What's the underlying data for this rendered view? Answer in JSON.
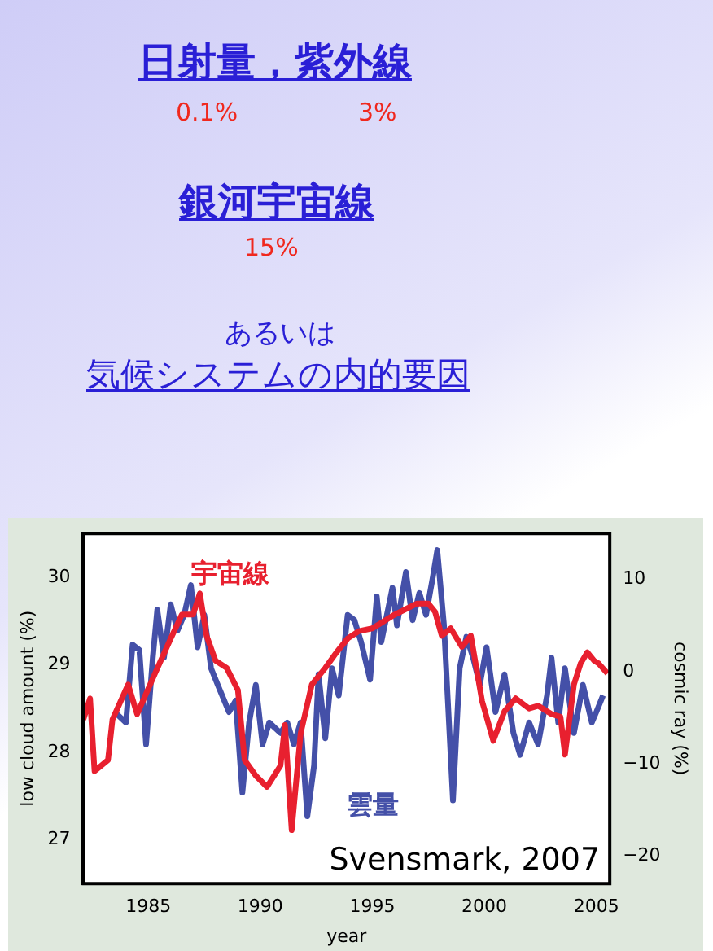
{
  "chart_data": {
    "type": "line",
    "xlabel": "year",
    "ylabel": "low cloud amount (%)",
    "y2label": "cosmic ray (%)",
    "annotations": [
      "日射量，紫外線",
      "0.1%",
      "3%",
      "銀河宇宙線",
      "15%",
      "あるいは",
      "気候システムの内的要因",
      "Svensmark, 2007"
    ],
    "xlim": [
      1982.1,
      2005.6
    ],
    "xticks": [
      1985,
      1990,
      1995,
      2000,
      2005
    ],
    "ylim": [
      26.5,
      30.5
    ],
    "yticks": [
      27,
      28,
      29,
      30
    ],
    "y2lim": [
      -23,
      15
    ],
    "y2ticks": [
      -20,
      -10,
      0,
      10
    ],
    "grid": false,
    "legend": false,
    "marker": "none",
    "line_style": "solid",
    "series": [
      {
        "name": "雲量",
        "color": "#4450a8",
        "x": [
          1983.5,
          1984.0,
          1984.3,
          1984.6,
          1984.9,
          1985.2,
          1985.4,
          1985.7,
          1986.0,
          1986.3,
          1986.6,
          1986.9,
          1987.2,
          1987.5,
          1987.8,
          1988.1,
          1988.6,
          1988.9,
          1989.2,
          1989.5,
          1989.8,
          1990.1,
          1990.4,
          1990.9,
          1991.2,
          1991.5,
          1991.8,
          1992.1,
          1992.4,
          1992.6,
          1992.9,
          1993.2,
          1993.5,
          1993.9,
          1994.2,
          1994.5,
          1994.9,
          1995.2,
          1995.4,
          1995.9,
          1996.1,
          1996.5,
          1996.8,
          1997.1,
          1997.4,
          1997.7,
          1997.9,
          1998.2,
          1998.6,
          1998.9,
          1999.2,
          1999.5,
          1999.8,
          2000.1,
          2000.5,
          2000.9,
          2001.3,
          2001.6,
          2002.0,
          2002.4,
          2002.8,
          2003.0,
          2003.3,
          2003.6,
          2004.0,
          2004.4,
          2004.8,
          2005.0,
          2005.3
        ],
        "values": [
          28.46,
          28.34,
          29.23,
          29.17,
          28.09,
          29.08,
          29.63,
          29.08,
          29.69,
          29.39,
          29.57,
          29.91,
          29.2,
          29.57,
          28.96,
          28.77,
          28.46,
          28.59,
          27.54,
          28.34,
          28.77,
          28.09,
          28.34,
          28.22,
          28.34,
          28.09,
          28.34,
          27.27,
          27.85,
          28.89,
          28.16,
          28.96,
          28.65,
          29.57,
          29.51,
          29.26,
          28.83,
          29.78,
          29.26,
          29.88,
          29.45,
          30.06,
          29.51,
          29.82,
          29.57,
          30.0,
          30.31,
          29.45,
          27.45,
          28.96,
          29.32,
          29.08,
          28.77,
          29.2,
          28.46,
          28.89,
          28.22,
          27.97,
          28.34,
          28.09,
          28.65,
          29.08,
          28.34,
          28.96,
          28.22,
          28.77,
          28.34,
          28.46,
          28.65
        ]
      },
      {
        "name": "宇宙線",
        "color": "#e8202f",
        "axis": "y2",
        "x": [
          1982.1,
          1982.4,
          1982.6,
          1983.2,
          1983.4,
          1984.1,
          1984.5,
          1985.3,
          1986.0,
          1986.5,
          1987.0,
          1987.3,
          1987.6,
          1988.0,
          1988.5,
          1989.0,
          1989.3,
          1989.8,
          1990.3,
          1990.9,
          1991.1,
          1991.4,
          1991.8,
          1992.3,
          1992.9,
          1993.4,
          1993.9,
          1994.4,
          1995.0,
          1995.4,
          1996.0,
          1996.5,
          1997.0,
          1997.5,
          1997.8,
          1998.1,
          1998.5,
          1999.0,
          1999.4,
          1999.9,
          2000.4,
          2000.9,
          2001.4,
          2002.0,
          2002.4,
          2003.0,
          2003.4,
          2003.6,
          2004.0,
          2004.3,
          2004.6,
          2004.9,
          2005.1,
          2005.5
        ],
        "values": [
          -5.2,
          -2.9,
          -10.8,
          -9.6,
          -5.2,
          -1.4,
          -4.6,
          -0.2,
          3.6,
          6.2,
          6.2,
          8.5,
          3.9,
          1.2,
          0.4,
          -2.0,
          -9.6,
          -11.3,
          -12.5,
          -10.2,
          -5.8,
          -17.2,
          -6.7,
          -1.4,
          0.4,
          2.1,
          3.6,
          4.4,
          4.7,
          5.3,
          6.2,
          6.8,
          7.4,
          7.4,
          6.5,
          3.9,
          4.7,
          2.7,
          3.9,
          -3.2,
          -7.5,
          -4.3,
          -2.9,
          -4.0,
          -3.7,
          -4.6,
          -4.9,
          -9.0,
          -1.4,
          0.9,
          2.1,
          1.2,
          0.9,
          -0.2
        ]
      }
    ]
  }
}
